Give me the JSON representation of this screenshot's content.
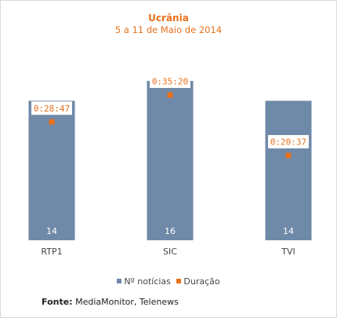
{
  "chart_data": {
    "type": "bar",
    "title": "Ucrânia",
    "subtitle": "5 a 11 de Maio de 2014",
    "categories": [
      "RTP1",
      "SIC",
      "TVI"
    ],
    "series": [
      {
        "name": "Nº notícias",
        "type": "bar",
        "values": [
          14,
          16,
          14
        ],
        "color": "#6f89a8"
      },
      {
        "name": "Duração",
        "type": "scatter",
        "values": [
          "0:28:47",
          "0:35:20",
          "0:20:37"
        ],
        "values_seconds": [
          1727,
          2120,
          1237
        ],
        "color": "#e8711c"
      }
    ],
    "grid": false,
    "legend_position": "bottom"
  },
  "source": {
    "label": "Fonte:",
    "text": "MediaMonitor, Telenews"
  }
}
